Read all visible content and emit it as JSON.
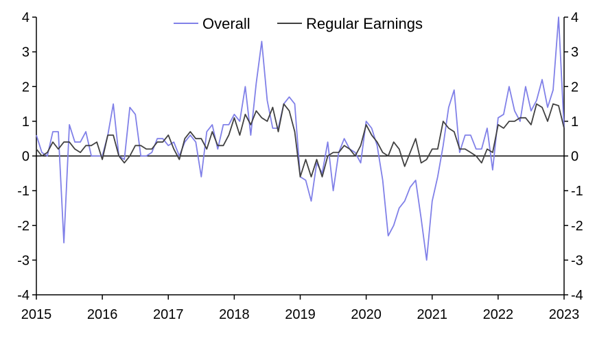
{
  "chart_data": {
    "type": "line",
    "title": "",
    "xlabel": "",
    "ylabel": "",
    "xlim": [
      2015,
      2023
    ],
    "ylim": [
      -4,
      4
    ],
    "x_ticks": [
      "2015",
      "2016",
      "2017",
      "2018",
      "2019",
      "2020",
      "2021",
      "2022",
      "2023"
    ],
    "y_ticks": [
      "-4",
      "-3",
      "-2",
      "-1",
      "0",
      "1",
      "2",
      "3",
      "4"
    ],
    "right_axis": true,
    "grid": false,
    "zero_line": true,
    "legend_position": "top-center",
    "x_start": "2015-01",
    "x_step": "month",
    "series": [
      {
        "name": "Overall",
        "color": "#8080e8",
        "values": [
          0.6,
          0.1,
          0.0,
          0.7,
          0.7,
          -2.5,
          0.9,
          0.4,
          0.4,
          0.7,
          0.0,
          0.0,
          0.0,
          0.6,
          1.5,
          0.0,
          -0.1,
          1.4,
          1.2,
          0.0,
          0.0,
          0.1,
          0.5,
          0.5,
          0.3,
          0.4,
          0.0,
          0.4,
          0.6,
          0.4,
          -0.6,
          0.7,
          0.9,
          0.2,
          0.9,
          0.9,
          1.2,
          1.0,
          2.0,
          0.6,
          2.1,
          3.3,
          1.6,
          0.8,
          0.8,
          1.5,
          1.7,
          1.5,
          -0.6,
          -0.7,
          -1.3,
          -0.2,
          -0.5,
          0.4,
          -1.0,
          0.1,
          0.5,
          0.2,
          0.1,
          -0.2,
          1.0,
          0.8,
          0.3,
          -0.7,
          -2.3,
          -2.0,
          -1.5,
          -1.3,
          -0.9,
          -0.7,
          -1.8,
          -3.0,
          -1.3,
          -0.6,
          0.3,
          1.4,
          1.9,
          0.1,
          0.6,
          0.6,
          0.2,
          0.2,
          0.8,
          -0.4,
          1.1,
          1.2,
          2.0,
          1.3,
          1.0,
          2.0,
          1.3,
          1.6,
          2.2,
          1.4,
          1.9,
          4.0,
          0.8
        ]
      },
      {
        "name": "Regular Earnings",
        "color": "#404040",
        "values": [
          0.2,
          0.0,
          0.1,
          0.4,
          0.2,
          0.4,
          0.4,
          0.2,
          0.1,
          0.3,
          0.3,
          0.4,
          -0.1,
          0.6,
          0.6,
          0.0,
          -0.2,
          0.0,
          0.3,
          0.3,
          0.2,
          0.2,
          0.4,
          0.4,
          0.6,
          0.2,
          -0.1,
          0.5,
          0.7,
          0.5,
          0.5,
          0.2,
          0.7,
          0.3,
          0.3,
          0.6,
          1.1,
          0.6,
          1.2,
          0.9,
          1.3,
          1.1,
          1.0,
          1.4,
          0.7,
          1.5,
          1.3,
          0.7,
          -0.6,
          -0.1,
          -0.6,
          -0.1,
          -0.6,
          0.0,
          0.1,
          0.1,
          0.3,
          0.2,
          0.0,
          0.3,
          0.9,
          0.6,
          0.4,
          0.1,
          0.0,
          0.4,
          0.2,
          -0.3,
          0.1,
          0.5,
          -0.2,
          -0.1,
          0.2,
          0.2,
          1.0,
          0.8,
          0.7,
          0.2,
          0.2,
          0.1,
          0.0,
          -0.2,
          0.2,
          0.1,
          0.9,
          0.8,
          1.0,
          1.0,
          1.1,
          1.1,
          0.9,
          1.5,
          1.4,
          1.0,
          1.5,
          1.45,
          0.8
        ]
      }
    ]
  }
}
